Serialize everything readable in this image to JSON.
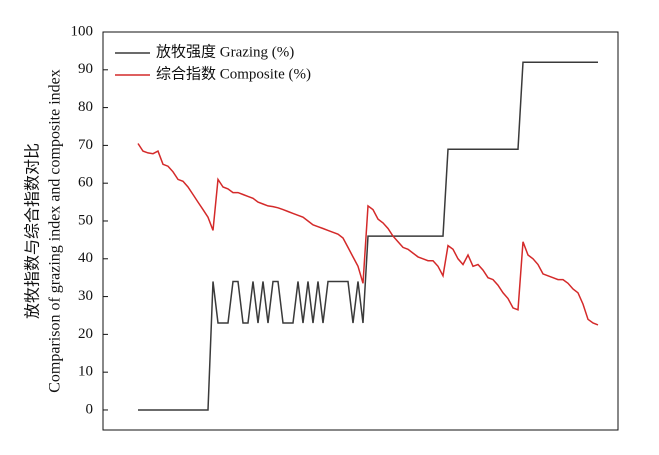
{
  "chart_data": {
    "type": "line",
    "ylabel": [
      "放牧指数与综合指数对比",
      "Comparison of grazing index and composite index"
    ],
    "ylim": [
      -5.3,
      100
    ],
    "yticks": [
      0,
      10,
      20,
      30,
      40,
      50,
      60,
      70,
      80,
      90,
      100
    ],
    "legend": "upper left",
    "series": [
      {
        "name": "放牧强度 Grazing (%)",
        "color": "#3a3a3a",
        "values": [
          0,
          0,
          0,
          0,
          0,
          0,
          0,
          0,
          0,
          0,
          0,
          0,
          0,
          0,
          0,
          34,
          23,
          23,
          23,
          34,
          34,
          23,
          23,
          34,
          23,
          34,
          23,
          34,
          34,
          23,
          23,
          23,
          34,
          23,
          34,
          23,
          34,
          23,
          34,
          34,
          34,
          34,
          34,
          23,
          34,
          23,
          46,
          46,
          46,
          46,
          46,
          46,
          46,
          46,
          46,
          46,
          46,
          46,
          46,
          46,
          46,
          46,
          69,
          69,
          69,
          69,
          69,
          69,
          69,
          69,
          69,
          69,
          69,
          69,
          69,
          69,
          69,
          92,
          92,
          92,
          92,
          92,
          92,
          92,
          92,
          92,
          92,
          92,
          92,
          92,
          92,
          92,
          92
        ]
      },
      {
        "name": "综合指数 Composite (%)",
        "color": "#d42a2a",
        "values": [
          70.5,
          68.5,
          68,
          67.8,
          68.5,
          65,
          64.5,
          63,
          61,
          60.5,
          59,
          57,
          55,
          53,
          51,
          47.5,
          61,
          59,
          58.5,
          57.5,
          57.5,
          57,
          56.5,
          56,
          55,
          54.5,
          54,
          53.8,
          53.5,
          53,
          52.5,
          52,
          51.5,
          51,
          50,
          49,
          48.5,
          48,
          47.5,
          47,
          46.5,
          45.5,
          43,
          40.5,
          38,
          33.5,
          54,
          53,
          50.5,
          49.5,
          48,
          46,
          44.5,
          43,
          42.5,
          41.5,
          40.5,
          40,
          39.5,
          39.5,
          38,
          35.5,
          43.5,
          42.5,
          40,
          38.5,
          41,
          38,
          38.5,
          37,
          35,
          34.5,
          33,
          31,
          29.5,
          27,
          26.5,
          44.5,
          41,
          40,
          38.5,
          36,
          35.5,
          35,
          34.5,
          34.5,
          33.5,
          32,
          31,
          28,
          24,
          23,
          22.5
        ]
      }
    ]
  }
}
